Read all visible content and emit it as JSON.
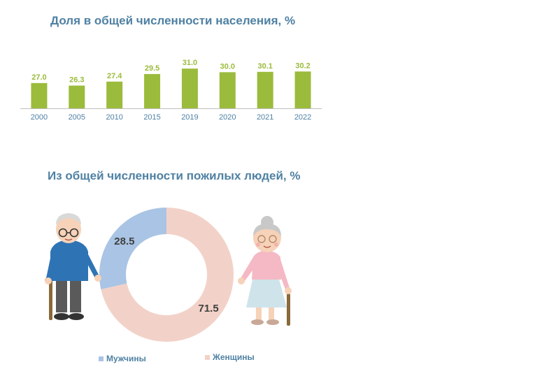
{
  "titles": {
    "bar": "Доля в общей численности населения, %",
    "donut": "Из общей численности пожилых людей, %"
  },
  "colors": {
    "bar": "#9bbb3c",
    "axis": "#bfbfbf",
    "men": "#a9c4e4",
    "women": "#f2d2c8",
    "title": "#4f81a3",
    "value_label": "#9bbb3c",
    "donut_label": "#404040"
  },
  "chart_data": [
    {
      "type": "bar",
      "title": "Доля в общей численности населения, %",
      "categories": [
        "2000",
        "2005",
        "2010",
        "2015",
        "2019",
        "2020",
        "2021",
        "2022"
      ],
      "values": [
        27.0,
        26.3,
        27.4,
        29.5,
        31.0,
        30.0,
        30.1,
        30.2
      ],
      "value_labels": [
        "27.0",
        "26.3",
        "27.4",
        "29.5",
        "31.0",
        "30.0",
        "30.1",
        "30.2"
      ],
      "ylim": [
        20,
        32
      ],
      "grid": false
    },
    {
      "type": "pie",
      "title": "Из общей численности пожилых людей, %",
      "donut": true,
      "labels": [
        "Мужчины",
        "Женщины"
      ],
      "values": [
        28.5,
        71.5
      ],
      "value_labels": [
        "28.5",
        "71.5"
      ],
      "legend": "bottom"
    }
  ],
  "illustrations": {
    "left": "elderly-man-with-cane",
    "right": "elderly-woman-with-cane"
  }
}
